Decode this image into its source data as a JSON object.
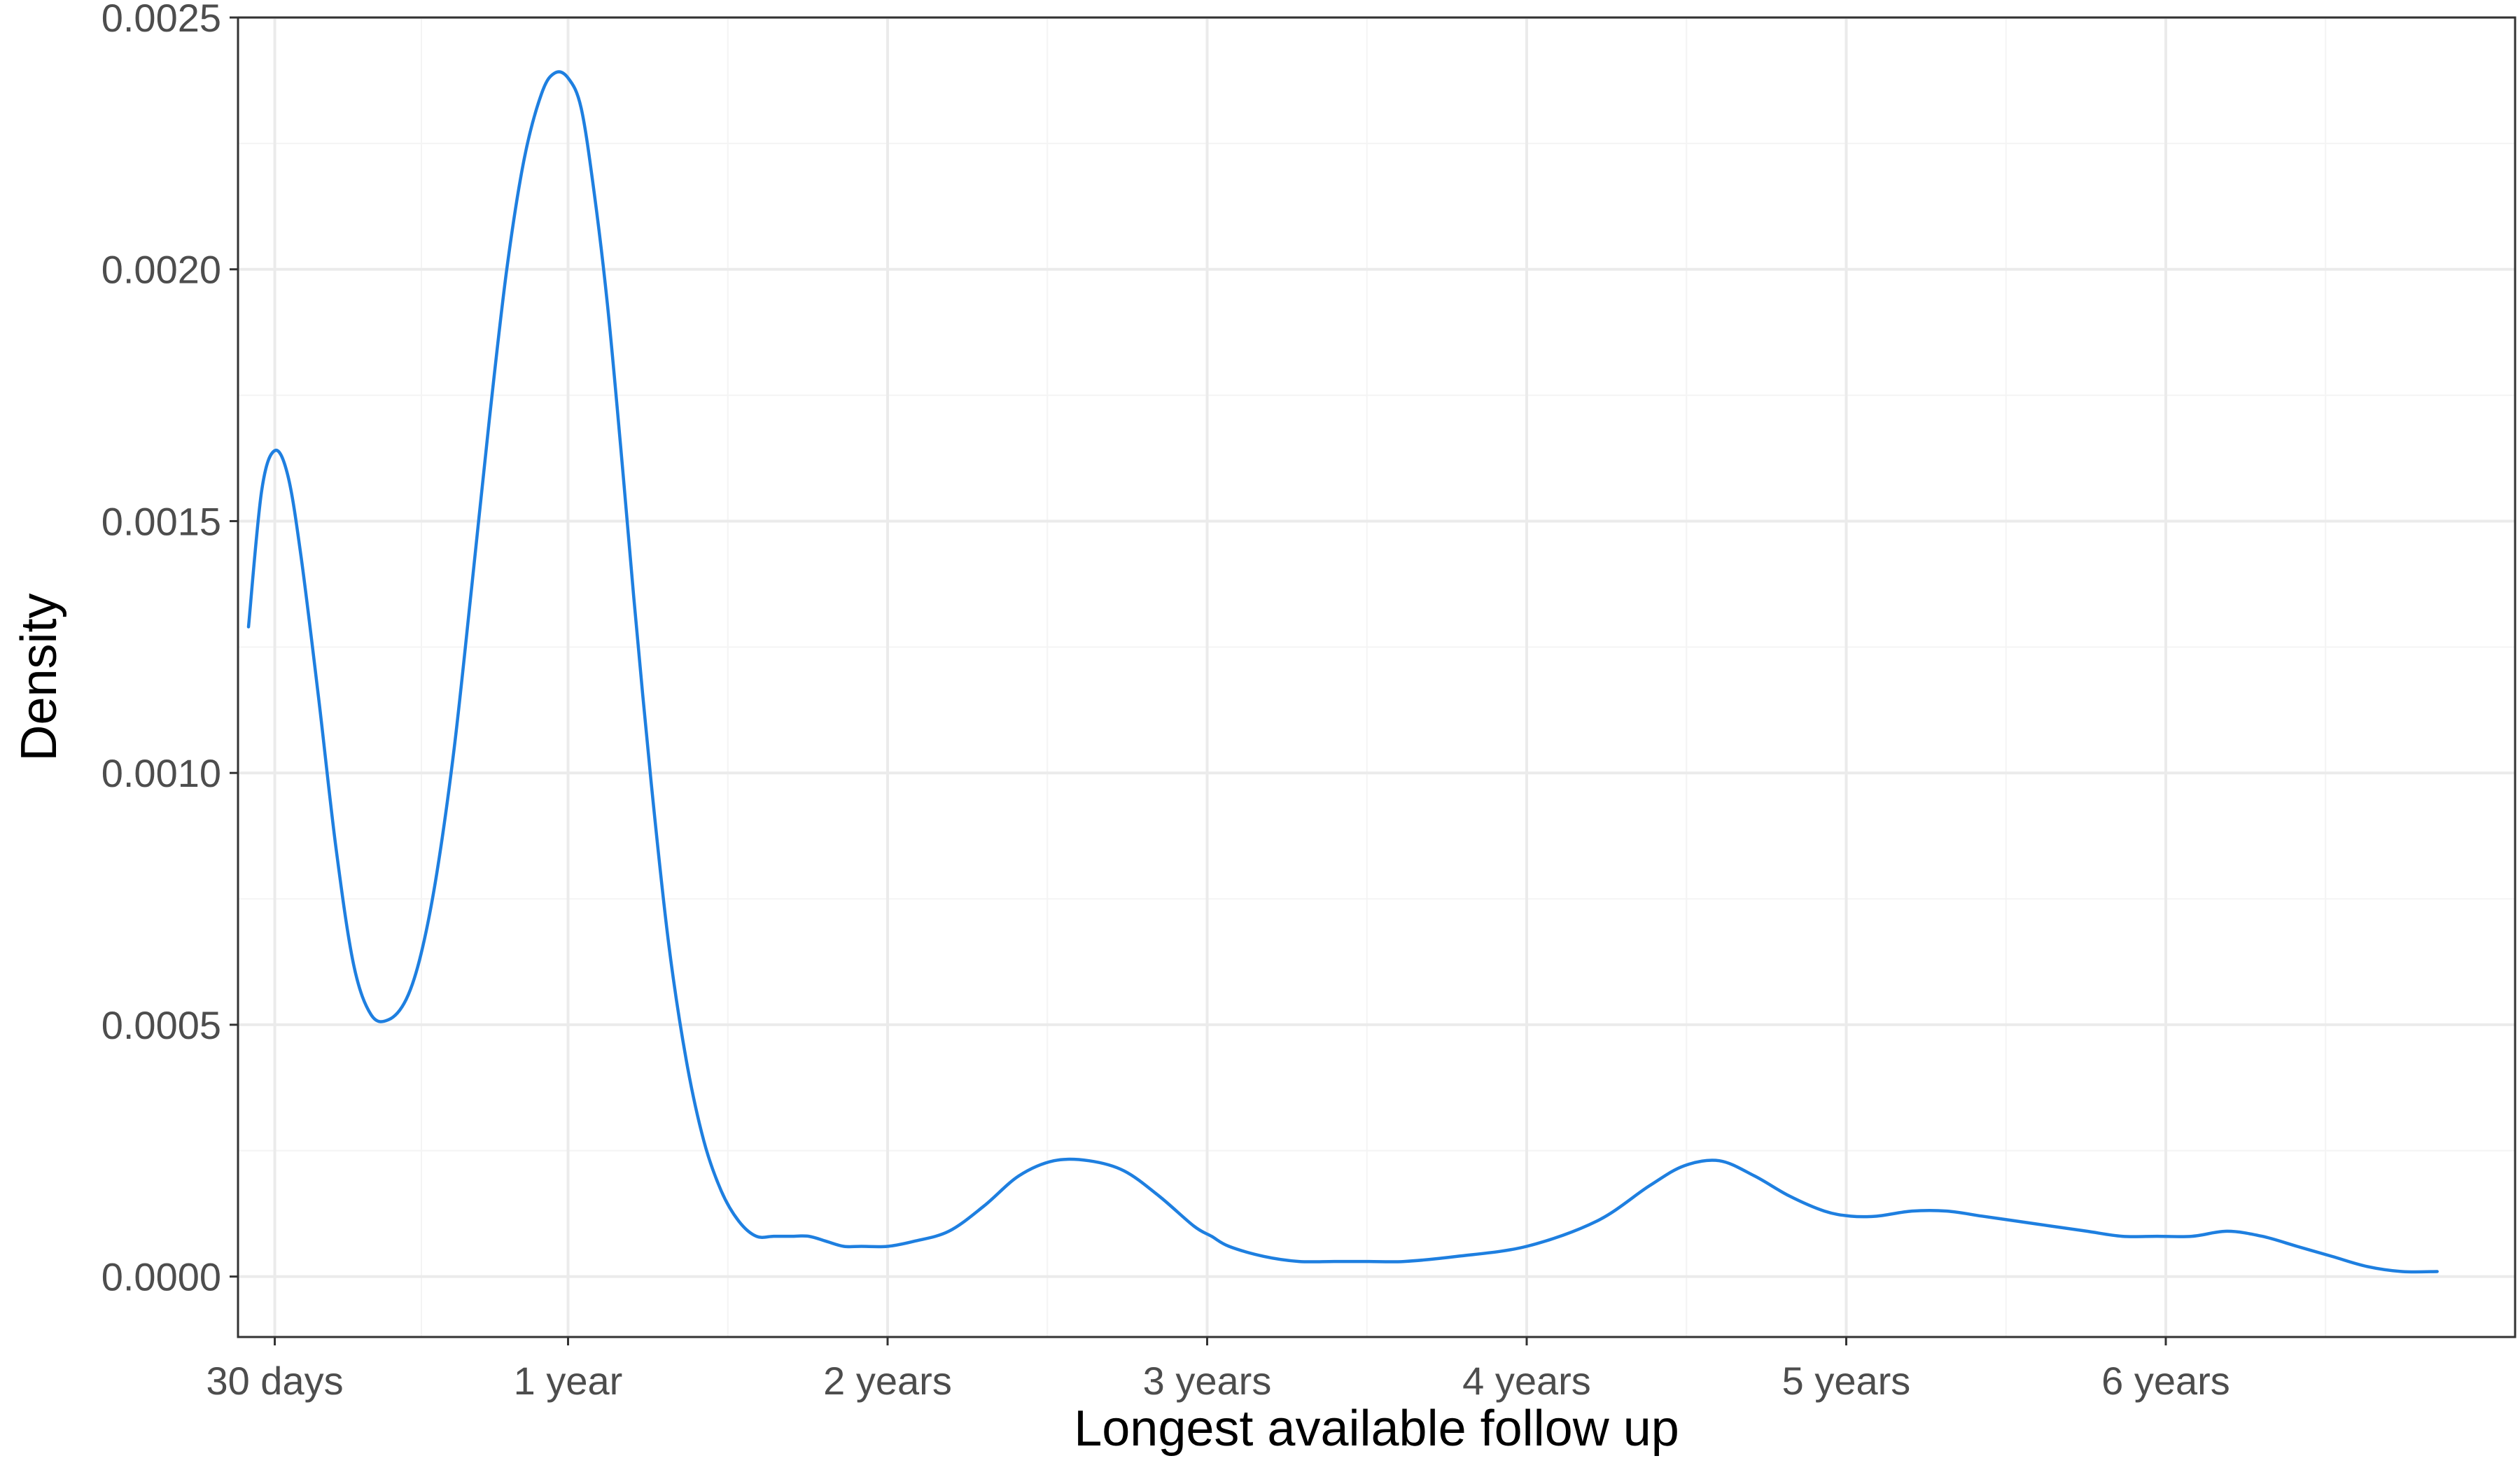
{
  "chart_data": {
    "type": "line",
    "title": "",
    "xlabel": "Longest available follow up",
    "ylabel": "Density",
    "x_unit": "days",
    "xlim": [
      -12,
      2589
    ],
    "ylim": [
      -0.00012,
      0.0025
    ],
    "grid": true,
    "x_ticks": [
      {
        "value": 30,
        "label": "30 days"
      },
      {
        "value": 365,
        "label": "1 year"
      },
      {
        "value": 730,
        "label": "2 years"
      },
      {
        "value": 1095,
        "label": "3 years"
      },
      {
        "value": 1460,
        "label": "4 years"
      },
      {
        "value": 1825,
        "label": "5 years"
      },
      {
        "value": 2190,
        "label": "6 years"
      }
    ],
    "x_minor_ticks": [
      197.5,
      547.5,
      912.5,
      1277.5,
      1642.5,
      2007.5,
      2372.5
    ],
    "y_ticks": [
      {
        "value": 0,
        "label": "0.0000"
      },
      {
        "value": 0.0005,
        "label": "0.0005"
      },
      {
        "value": 0.001,
        "label": "0.0010"
      },
      {
        "value": 0.0015,
        "label": "0.0015"
      },
      {
        "value": 0.002,
        "label": "0.0020"
      },
      {
        "value": 0.0025,
        "label": "0.0025"
      }
    ],
    "y_minor_ticks": [
      0.00025,
      0.00075,
      0.00125,
      0.00175,
      0.00225
    ],
    "series": [
      {
        "color": "#1e7fe0",
        "x": [
          0,
          15,
          30,
          45,
          60,
          80,
          100,
          120,
          140,
          160,
          180,
          197,
          215,
          235,
          255,
          275,
          295,
          315,
          335,
          350,
          365,
          380,
          395,
          410,
          425,
          440,
          460,
          480,
          500,
          520,
          540,
          560,
          580,
          600,
          620,
          640,
          660,
          680,
          700,
          730,
          760,
          800,
          840,
          880,
          920,
          960,
          1000,
          1040,
          1080,
          1100,
          1120,
          1160,
          1200,
          1240,
          1280,
          1320,
          1380,
          1460,
          1540,
          1600,
          1640,
          1680,
          1720,
          1760,
          1800,
          1830,
          1860,
          1900,
          1940,
          1980,
          2020,
          2060,
          2100,
          2140,
          2180,
          2220,
          2260,
          2300,
          2340,
          2380,
          2420,
          2460,
          2500
        ],
        "y": [
          0.00129,
          0.00156,
          0.00164,
          0.00159,
          0.00143,
          0.00115,
          0.00085,
          0.00062,
          0.00052,
          0.00051,
          0.00055,
          0.00064,
          0.0008,
          0.00105,
          0.00137,
          0.0017,
          0.002,
          0.00222,
          0.00235,
          0.00239,
          0.00238,
          0.00232,
          0.00215,
          0.00193,
          0.00165,
          0.00135,
          0.00098,
          0.00066,
          0.00043,
          0.00027,
          0.00017,
          0.00011,
          8e-05,
          8e-05,
          8e-05,
          8e-05,
          7e-05,
          6e-05,
          6e-05,
          6e-05,
          7e-05,
          9e-05,
          0.00014,
          0.0002,
          0.00023,
          0.00023,
          0.00021,
          0.00016,
          0.0001,
          8e-05,
          6e-05,
          4e-05,
          3e-05,
          3e-05,
          3e-05,
          3e-05,
          4e-05,
          6e-05,
          0.00011,
          0.00018,
          0.00022,
          0.00023,
          0.0002,
          0.00016,
          0.00013,
          0.00012,
          0.00012,
          0.00013,
          0.00013,
          0.00012,
          0.00011,
          0.0001,
          9e-05,
          8e-05,
          8e-05,
          8e-05,
          9e-05,
          8e-05,
          6e-05,
          4e-05,
          2e-05,
          1e-05,
          1e-05
        ]
      }
    ]
  }
}
